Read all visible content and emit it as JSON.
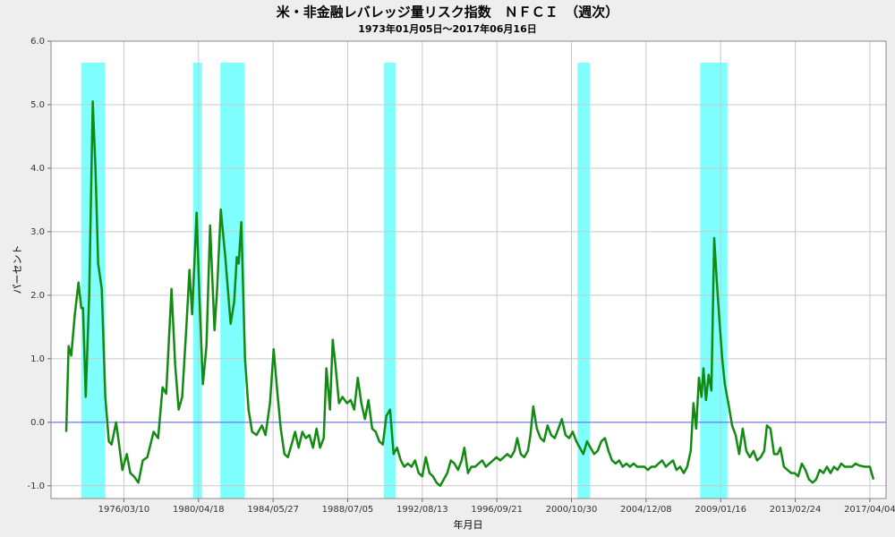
{
  "chart_data": {
    "type": "line",
    "title": "米・非金融レバレッジ量リスク指数　ＮＦＣＩ　（週次）",
    "subtitle": "1973年01月05日～2017年06月16日",
    "x_label": "年月日",
    "y_label": "パーセント",
    "grid": true,
    "xlim": [
      "1972/03/05",
      "2018/02/24"
    ],
    "xticks": [
      "1976/03/10",
      "1980/04/18",
      "1984/05/27",
      "1988/07/05",
      "1992/08/13",
      "1996/09/21",
      "2000/10/30",
      "2004/12/08",
      "2009/01/16",
      "2013/02/24",
      "2017/04/04"
    ],
    "ylim": [
      -1.2,
      6.0
    ],
    "yticks": [
      {
        "value": -1,
        "label": "-1.0"
      },
      {
        "value": 0,
        "label": "0.0"
      },
      {
        "value": 1,
        "label": "1.0"
      },
      {
        "value": 2,
        "label": "2.0"
      },
      {
        "value": 3,
        "label": "3.0"
      },
      {
        "value": 4,
        "label": "4.0"
      },
      {
        "value": 5,
        "label": "5.0"
      },
      {
        "value": 6,
        "label": "6.0"
      }
    ],
    "reference_line": {
      "y": 0,
      "color": "#5a5aff"
    },
    "shaded_color": "#80ffff",
    "shaded_periods": [
      {
        "start": "1973/11/01",
        "end": "1975/03/01"
      },
      {
        "start": "1980/01/01",
        "end": "1980/07/01"
      },
      {
        "start": "1981/07/01",
        "end": "1982/11/01"
      },
      {
        "start": "1990/07/01",
        "end": "1991/03/01"
      },
      {
        "start": "2001/03/01",
        "end": "2001/11/01"
      },
      {
        "start": "2007/12/01",
        "end": "2009/06/01"
      }
    ],
    "x": [
      "1973/01/05",
      "1973/02/22",
      "1973/04/16",
      "1973/06/27",
      "1973/09/09",
      "1973/11/03",
      "1973/12/08",
      "1974/02/01",
      "1974/04/12",
      "1974/06/22",
      "1974/08/16",
      "1974/10/09",
      "1974/12/20",
      "1975/03/02",
      "1975/05/12",
      "1975/07/06",
      "1975/10/04",
      "1975/11/26",
      "1976/02/08",
      "1976/05/07",
      "1976/07/17",
      "1976/09/27",
      "1976/12/26",
      "1977/03/25",
      "1977/06/24",
      "1977/10/28",
      "1978/01/27",
      "1978/04/26",
      "1978/07/08",
      "1978/10/23",
      "1979/01/05",
      "1979/03/16",
      "1979/05/26",
      "1979/08/25",
      "1979/10/19",
      "1979/12/12",
      "1980/03/11",
      "1980/05/05",
      "1980/07/15",
      "1980/09/25",
      "1980/12/07",
      "1981/03/06",
      "1981/04/28",
      "1981/07/10",
      "1981/10/09",
      "1982/01/24",
      "1982/04/06",
      "1982/05/28",
      "1982/07/05",
      "1982/08/27",
      "1982/11/09",
      "1983/01/19",
      "1983/04/01",
      "1983/06/28",
      "1983/10/16",
      "1983/12/26",
      "1984/03/25",
      "1984/06/07",
      "1984/08/17",
      "1984/10/28",
      "1985/01/10",
      "1985/03/20",
      "1985/06/02",
      "1985/08/12",
      "1985/10/23",
      "1986/01/05",
      "1986/03/15",
      "1986/05/26",
      "1986/08/08",
      "1986/10/18",
      "1986/12/28",
      "1987/03/11",
      "1987/05/04",
      "1987/07/14",
      "1987/09/08",
      "1987/11/02",
      "1988/01/12",
      "1988/03/22",
      "1988/06/21",
      "1988/09/03",
      "1988/11/13",
      "1989/01/24",
      "1989/04/06",
      "1989/06/16",
      "1989/08/27",
      "1989/11/09",
      "1990/01/19",
      "1990/04/01",
      "1990/06/12",
      "1990/08/22",
      "1990/11/04",
      "1991/01/14",
      "1991/03/25",
      "1991/06/07",
      "1991/08/17",
      "1991/10/28",
      "1992/01/10",
      "1992/03/20",
      "1992/06/02",
      "1992/08/12",
      "1992/10/23",
      "1993/01/05",
      "1993/03/15",
      "1993/05/26",
      "1993/08/08",
      "1993/10/18",
      "1993/12/28",
      "1994/03/10",
      "1994/05/21",
      "1994/08/03",
      "1994/10/13",
      "1994/12/07",
      "1995/02/17",
      "1995/04/28",
      "1995/07/10",
      "1995/09/20",
      "1995/12/02",
      "1996/02/12",
      "1996/04/23",
      "1996/07/05",
      "1996/09/15",
      "1996/11/25",
      "1997/02/08",
      "1997/04/18",
      "1997/06/28",
      "1997/09/10",
      "1997/11/04",
      "1998/01/14",
      "1998/03/24",
      "1998/06/07",
      "1998/07/28",
      "1998/09/22",
      "1998/12/04",
      "1999/02/15",
      "1999/04/25",
      "1999/07/07",
      "1999/09/17",
      "1999/11/28",
      "2000/02/10",
      "2000/04/20",
      "2000/07/02",
      "2000/09/12",
      "2000/11/23",
      "2001/02/05",
      "2001/04/15",
      "2001/06/26",
      "2001/09/08",
      "2001/11/18",
      "2002/01/28",
      "2002/04/10",
      "2002/06/21",
      "2002/09/03",
      "2002/11/13",
      "2003/01/24",
      "2003/04/06",
      "2003/06/16",
      "2003/08/26",
      "2003/11/09",
      "2004/01/19",
      "2004/04/01",
      "2004/06/11",
      "2004/08/22",
      "2004/11/04",
      "2005/01/14",
      "2005/03/24",
      "2005/06/07",
      "2005/08/17",
      "2005/10/27",
      "2006/01/09",
      "2006/03/20",
      "2006/06/02",
      "2006/08/12",
      "2006/10/23",
      "2007/01/05",
      "2007/03/15",
      "2007/05/25",
      "2007/07/19",
      "2007/09/12",
      "2007/11/06",
      "2007/12/28",
      "2008/02/05",
      "2008/03/27",
      "2008/05/20",
      "2008/07/14",
      "2008/09/08",
      "2008/11/01",
      "2008/12/23",
      "2009/02/16",
      "2009/04/10",
      "2009/06/20",
      "2009/09/03",
      "2009/11/13",
      "2010/01/23",
      "2010/04/05",
      "2010/06/16",
      "2010/08/26",
      "2010/11/08",
      "2011/01/18",
      "2011/04/01",
      "2011/06/11",
      "2011/08/05",
      "2011/10/15",
      "2011/12/25",
      "2012/03/07",
      "2012/05/01",
      "2012/07/11",
      "2012/09/22",
      "2012/12/04",
      "2013/02/14",
      "2013/04/24",
      "2013/07/06",
      "2013/09/17",
      "2013/11/27",
      "2014/02/09",
      "2014/04/20",
      "2014/07/02",
      "2014/09/12",
      "2014/11/23",
      "2015/02/04",
      "2015/04/15",
      "2015/06/25",
      "2015/09/07",
      "2015/11/18",
      "2016/01/28",
      "2016/04/10",
      "2016/06/20",
      "2016/09/02",
      "2016/12/18",
      "2017/04/04",
      "2017/06/16"
    ],
    "series": [
      {
        "name": "NFCI",
        "color": "#138a13",
        "values": [
          -0.15,
          1.2,
          1.05,
          1.7,
          2.2,
          1.8,
          1.8,
          0.4,
          2.0,
          5.05,
          4.0,
          2.5,
          2.1,
          0.4,
          -0.3,
          -0.35,
          0.0,
          -0.3,
          -0.75,
          -0.5,
          -0.8,
          -0.85,
          -0.95,
          -0.6,
          -0.55,
          -0.15,
          -0.25,
          0.55,
          0.45,
          2.1,
          0.9,
          0.2,
          0.4,
          1.6,
          2.4,
          1.7,
          3.3,
          2.0,
          0.6,
          1.2,
          3.1,
          1.45,
          2.1,
          3.35,
          2.6,
          1.55,
          1.9,
          2.6,
          2.5,
          3.15,
          1.0,
          0.2,
          -0.15,
          -0.2,
          -0.05,
          -0.2,
          0.3,
          1.15,
          0.5,
          -0.1,
          -0.5,
          -0.55,
          -0.35,
          -0.15,
          -0.4,
          -0.15,
          -0.25,
          -0.2,
          -0.4,
          -0.1,
          -0.4,
          -0.25,
          0.85,
          0.2,
          1.3,
          0.9,
          0.3,
          0.4,
          0.3,
          0.35,
          0.2,
          0.7,
          0.3,
          0.05,
          0.35,
          -0.1,
          -0.15,
          -0.3,
          -0.35,
          0.1,
          0.2,
          -0.5,
          -0.4,
          -0.6,
          -0.7,
          -0.65,
          -0.7,
          -0.6,
          -0.8,
          -0.85,
          -0.55,
          -0.8,
          -0.85,
          -0.95,
          -1.0,
          -0.9,
          -0.8,
          -0.6,
          -0.65,
          -0.75,
          -0.6,
          -0.4,
          -0.8,
          -0.7,
          -0.7,
          -0.65,
          -0.6,
          -0.7,
          -0.65,
          -0.6,
          -0.55,
          -0.6,
          -0.55,
          -0.5,
          -0.55,
          -0.45,
          -0.25,
          -0.5,
          -0.55,
          -0.45,
          -0.2,
          0.25,
          -0.1,
          -0.25,
          -0.3,
          -0.05,
          -0.2,
          -0.25,
          -0.1,
          0.05,
          -0.2,
          -0.25,
          -0.15,
          -0.3,
          -0.4,
          -0.5,
          -0.3,
          -0.4,
          -0.5,
          -0.45,
          -0.3,
          -0.25,
          -0.45,
          -0.6,
          -0.65,
          -0.6,
          -0.7,
          -0.65,
          -0.7,
          -0.65,
          -0.7,
          -0.7,
          -0.7,
          -0.75,
          -0.7,
          -0.7,
          -0.65,
          -0.6,
          -0.7,
          -0.65,
          -0.6,
          -0.75,
          -0.7,
          -0.8,
          -0.7,
          -0.45,
          0.3,
          -0.1,
          0.7,
          0.4,
          0.85,
          0.35,
          0.75,
          0.5,
          2.9,
          2.2,
          1.6,
          1.0,
          0.6,
          0.3,
          -0.05,
          -0.2,
          -0.5,
          -0.1,
          -0.45,
          -0.55,
          -0.45,
          -0.6,
          -0.55,
          -0.45,
          -0.05,
          -0.1,
          -0.5,
          -0.5,
          -0.4,
          -0.7,
          -0.75,
          -0.8,
          -0.8,
          -0.85,
          -0.65,
          -0.75,
          -0.9,
          -0.95,
          -0.9,
          -0.75,
          -0.8,
          -0.7,
          -0.8,
          -0.7,
          -0.75,
          -0.65,
          -0.7,
          -0.7,
          -0.7,
          -0.65,
          -0.68,
          -0.7,
          -0.7,
          -0.9
        ]
      }
    ]
  }
}
